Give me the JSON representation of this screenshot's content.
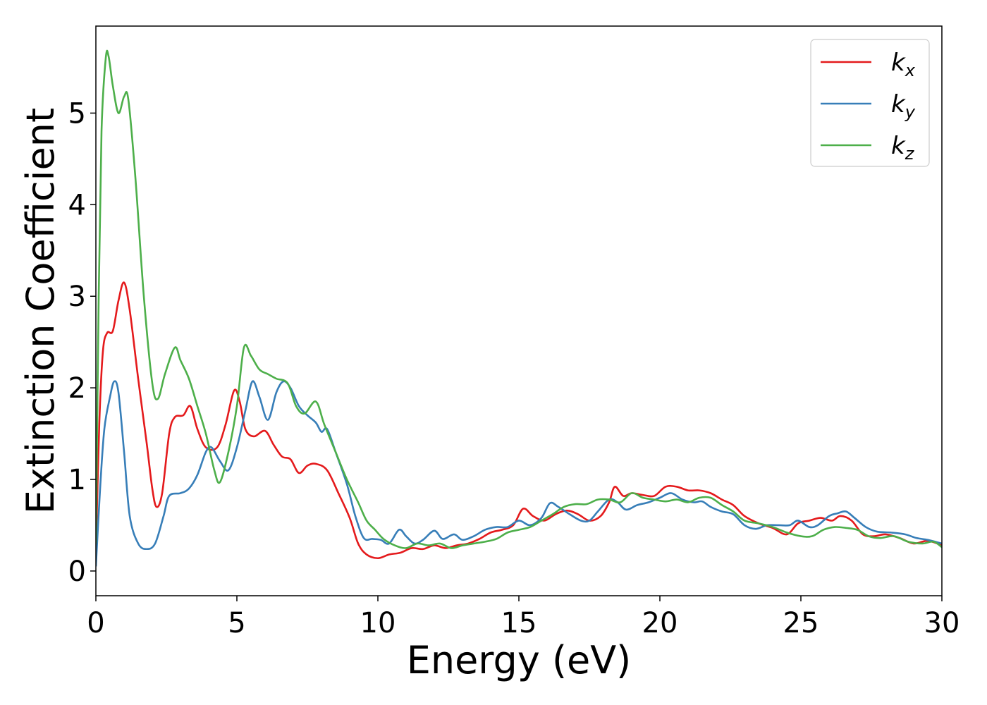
{
  "chart_data": {
    "type": "line",
    "title": "",
    "xlabel": "Energy (eV)",
    "ylabel": "Extinction Coefficient",
    "xlim": [
      0,
      30
    ],
    "ylim": [
      -0.27,
      5.95
    ],
    "xticks": [
      0,
      5,
      10,
      15,
      20,
      25,
      30
    ],
    "yticks": [
      0,
      1,
      2,
      3,
      4,
      5
    ],
    "grid": false,
    "legend_position": "top-right",
    "series": [
      {
        "name": "k",
        "subscript": "x",
        "color": "#e41a1c",
        "points": [
          [
            0,
            0.2
          ],
          [
            0.12,
            1.6
          ],
          [
            0.25,
            2.4
          ],
          [
            0.4,
            2.6
          ],
          [
            0.6,
            2.62
          ],
          [
            0.8,
            2.95
          ],
          [
            1.0,
            3.15
          ],
          [
            1.2,
            2.85
          ],
          [
            1.5,
            2.1
          ],
          [
            1.8,
            1.4
          ],
          [
            2.0,
            0.9
          ],
          [
            2.15,
            0.7
          ],
          [
            2.35,
            0.85
          ],
          [
            2.6,
            1.5
          ],
          [
            2.8,
            1.68
          ],
          [
            3.1,
            1.7
          ],
          [
            3.35,
            1.8
          ],
          [
            3.6,
            1.55
          ],
          [
            3.9,
            1.35
          ],
          [
            4.3,
            1.35
          ],
          [
            4.6,
            1.6
          ],
          [
            4.9,
            1.97
          ],
          [
            5.1,
            1.85
          ],
          [
            5.3,
            1.55
          ],
          [
            5.6,
            1.47
          ],
          [
            6.0,
            1.53
          ],
          [
            6.3,
            1.38
          ],
          [
            6.6,
            1.25
          ],
          [
            6.9,
            1.22
          ],
          [
            7.2,
            1.07
          ],
          [
            7.5,
            1.15
          ],
          [
            7.8,
            1.17
          ],
          [
            8.2,
            1.1
          ],
          [
            8.6,
            0.85
          ],
          [
            9.0,
            0.58
          ],
          [
            9.3,
            0.3
          ],
          [
            9.6,
            0.18
          ],
          [
            10.0,
            0.14
          ],
          [
            10.4,
            0.18
          ],
          [
            10.8,
            0.2
          ],
          [
            11.2,
            0.25
          ],
          [
            11.6,
            0.24
          ],
          [
            12.0,
            0.28
          ],
          [
            12.4,
            0.25
          ],
          [
            12.8,
            0.28
          ],
          [
            13.2,
            0.3
          ],
          [
            13.6,
            0.35
          ],
          [
            14.0,
            0.42
          ],
          [
            14.4,
            0.45
          ],
          [
            14.8,
            0.5
          ],
          [
            15.15,
            0.68
          ],
          [
            15.5,
            0.6
          ],
          [
            15.9,
            0.55
          ],
          [
            16.3,
            0.62
          ],
          [
            16.7,
            0.66
          ],
          [
            17.1,
            0.62
          ],
          [
            17.5,
            0.55
          ],
          [
            17.9,
            0.6
          ],
          [
            18.2,
            0.75
          ],
          [
            18.4,
            0.92
          ],
          [
            18.7,
            0.82
          ],
          [
            19.0,
            0.85
          ],
          [
            19.4,
            0.83
          ],
          [
            19.8,
            0.82
          ],
          [
            20.2,
            0.92
          ],
          [
            20.6,
            0.92
          ],
          [
            21.0,
            0.88
          ],
          [
            21.4,
            0.88
          ],
          [
            21.8,
            0.85
          ],
          [
            22.2,
            0.78
          ],
          [
            22.6,
            0.72
          ],
          [
            23.0,
            0.6
          ],
          [
            23.5,
            0.52
          ],
          [
            24.0,
            0.47
          ],
          [
            24.5,
            0.4
          ],
          [
            24.9,
            0.52
          ],
          [
            25.3,
            0.55
          ],
          [
            25.7,
            0.58
          ],
          [
            26.1,
            0.55
          ],
          [
            26.4,
            0.6
          ],
          [
            26.8,
            0.55
          ],
          [
            27.2,
            0.4
          ],
          [
            27.6,
            0.38
          ],
          [
            28.0,
            0.4
          ],
          [
            28.5,
            0.36
          ],
          [
            29.0,
            0.3
          ],
          [
            29.5,
            0.33
          ],
          [
            30.0,
            0.28
          ]
        ]
      },
      {
        "name": "k",
        "subscript": "y",
        "color": "#377eb8",
        "points": [
          [
            0,
            0.05
          ],
          [
            0.15,
            0.9
          ],
          [
            0.3,
            1.55
          ],
          [
            0.5,
            1.9
          ],
          [
            0.65,
            2.07
          ],
          [
            0.8,
            1.95
          ],
          [
            1.0,
            1.3
          ],
          [
            1.2,
            0.6
          ],
          [
            1.5,
            0.3
          ],
          [
            1.8,
            0.24
          ],
          [
            2.1,
            0.3
          ],
          [
            2.4,
            0.6
          ],
          [
            2.6,
            0.82
          ],
          [
            3.0,
            0.85
          ],
          [
            3.3,
            0.9
          ],
          [
            3.6,
            1.05
          ],
          [
            3.9,
            1.3
          ],
          [
            4.1,
            1.35
          ],
          [
            4.4,
            1.2
          ],
          [
            4.7,
            1.1
          ],
          [
            5.0,
            1.35
          ],
          [
            5.3,
            1.75
          ],
          [
            5.55,
            2.07
          ],
          [
            5.8,
            1.9
          ],
          [
            6.1,
            1.65
          ],
          [
            6.4,
            1.95
          ],
          [
            6.65,
            2.07
          ],
          [
            6.9,
            2.0
          ],
          [
            7.2,
            1.8
          ],
          [
            7.5,
            1.7
          ],
          [
            7.8,
            1.62
          ],
          [
            8.0,
            1.52
          ],
          [
            8.2,
            1.55
          ],
          [
            8.5,
            1.3
          ],
          [
            8.9,
            0.95
          ],
          [
            9.2,
            0.6
          ],
          [
            9.5,
            0.36
          ],
          [
            9.8,
            0.35
          ],
          [
            10.1,
            0.34
          ],
          [
            10.4,
            0.3
          ],
          [
            10.75,
            0.45
          ],
          [
            11.0,
            0.38
          ],
          [
            11.3,
            0.3
          ],
          [
            11.6,
            0.34
          ],
          [
            12.0,
            0.44
          ],
          [
            12.3,
            0.35
          ],
          [
            12.7,
            0.4
          ],
          [
            13.0,
            0.34
          ],
          [
            13.4,
            0.38
          ],
          [
            13.8,
            0.45
          ],
          [
            14.2,
            0.48
          ],
          [
            14.6,
            0.48
          ],
          [
            15.0,
            0.55
          ],
          [
            15.4,
            0.5
          ],
          [
            15.8,
            0.58
          ],
          [
            16.1,
            0.74
          ],
          [
            16.4,
            0.7
          ],
          [
            16.8,
            0.62
          ],
          [
            17.2,
            0.55
          ],
          [
            17.5,
            0.55
          ],
          [
            17.8,
            0.65
          ],
          [
            18.2,
            0.78
          ],
          [
            18.5,
            0.75
          ],
          [
            18.8,
            0.67
          ],
          [
            19.2,
            0.72
          ],
          [
            19.6,
            0.75
          ],
          [
            20.0,
            0.8
          ],
          [
            20.4,
            0.85
          ],
          [
            20.8,
            0.78
          ],
          [
            21.2,
            0.75
          ],
          [
            21.5,
            0.76
          ],
          [
            21.8,
            0.7
          ],
          [
            22.2,
            0.65
          ],
          [
            22.6,
            0.62
          ],
          [
            23.0,
            0.5
          ],
          [
            23.4,
            0.46
          ],
          [
            23.8,
            0.5
          ],
          [
            24.2,
            0.5
          ],
          [
            24.6,
            0.5
          ],
          [
            24.9,
            0.55
          ],
          [
            25.3,
            0.48
          ],
          [
            25.6,
            0.5
          ],
          [
            26.0,
            0.6
          ],
          [
            26.3,
            0.63
          ],
          [
            26.6,
            0.65
          ],
          [
            26.9,
            0.58
          ],
          [
            27.3,
            0.48
          ],
          [
            27.7,
            0.43
          ],
          [
            28.2,
            0.42
          ],
          [
            28.7,
            0.4
          ],
          [
            29.1,
            0.36
          ],
          [
            29.5,
            0.34
          ],
          [
            30.0,
            0.3
          ]
        ]
      },
      {
        "name": "k",
        "subscript": "z",
        "color": "#4daf4a",
        "points": [
          [
            0,
            0.3
          ],
          [
            0.1,
            3.0
          ],
          [
            0.2,
            4.8
          ],
          [
            0.35,
            5.6
          ],
          [
            0.45,
            5.62
          ],
          [
            0.6,
            5.3
          ],
          [
            0.8,
            5.0
          ],
          [
            1.0,
            5.18
          ],
          [
            1.15,
            5.15
          ],
          [
            1.4,
            4.3
          ],
          [
            1.7,
            3.0
          ],
          [
            2.0,
            2.05
          ],
          [
            2.2,
            1.88
          ],
          [
            2.45,
            2.15
          ],
          [
            2.8,
            2.44
          ],
          [
            3.0,
            2.3
          ],
          [
            3.3,
            2.1
          ],
          [
            3.6,
            1.8
          ],
          [
            3.9,
            1.5
          ],
          [
            4.2,
            1.1
          ],
          [
            4.4,
            0.97
          ],
          [
            4.7,
            1.3
          ],
          [
            5.0,
            1.8
          ],
          [
            5.25,
            2.44
          ],
          [
            5.5,
            2.35
          ],
          [
            5.8,
            2.2
          ],
          [
            6.1,
            2.15
          ],
          [
            6.4,
            2.1
          ],
          [
            6.8,
            2.05
          ],
          [
            7.1,
            1.8
          ],
          [
            7.4,
            1.72
          ],
          [
            7.8,
            1.85
          ],
          [
            8.1,
            1.6
          ],
          [
            8.5,
            1.3
          ],
          [
            8.9,
            1.0
          ],
          [
            9.3,
            0.75
          ],
          [
            9.6,
            0.55
          ],
          [
            9.9,
            0.45
          ],
          [
            10.2,
            0.35
          ],
          [
            10.6,
            0.28
          ],
          [
            11.0,
            0.25
          ],
          [
            11.4,
            0.3
          ],
          [
            11.8,
            0.28
          ],
          [
            12.2,
            0.3
          ],
          [
            12.6,
            0.25
          ],
          [
            13.0,
            0.28
          ],
          [
            13.4,
            0.3
          ],
          [
            13.8,
            0.32
          ],
          [
            14.2,
            0.35
          ],
          [
            14.6,
            0.42
          ],
          [
            15.0,
            0.45
          ],
          [
            15.4,
            0.48
          ],
          [
            15.8,
            0.55
          ],
          [
            16.2,
            0.62
          ],
          [
            16.6,
            0.7
          ],
          [
            17.0,
            0.73
          ],
          [
            17.4,
            0.73
          ],
          [
            17.8,
            0.78
          ],
          [
            18.2,
            0.78
          ],
          [
            18.6,
            0.75
          ],
          [
            19.0,
            0.85
          ],
          [
            19.4,
            0.8
          ],
          [
            19.8,
            0.78
          ],
          [
            20.2,
            0.76
          ],
          [
            20.6,
            0.78
          ],
          [
            21.0,
            0.75
          ],
          [
            21.4,
            0.8
          ],
          [
            21.8,
            0.8
          ],
          [
            22.2,
            0.72
          ],
          [
            22.6,
            0.65
          ],
          [
            23.0,
            0.55
          ],
          [
            23.5,
            0.52
          ],
          [
            24.0,
            0.48
          ],
          [
            24.5,
            0.42
          ],
          [
            25.0,
            0.38
          ],
          [
            25.4,
            0.38
          ],
          [
            25.8,
            0.45
          ],
          [
            26.2,
            0.48
          ],
          [
            26.6,
            0.47
          ],
          [
            27.0,
            0.45
          ],
          [
            27.4,
            0.38
          ],
          [
            27.8,
            0.36
          ],
          [
            28.3,
            0.38
          ],
          [
            28.8,
            0.32
          ],
          [
            29.3,
            0.3
          ],
          [
            29.7,
            0.32
          ],
          [
            30.0,
            0.26
          ]
        ]
      }
    ]
  }
}
